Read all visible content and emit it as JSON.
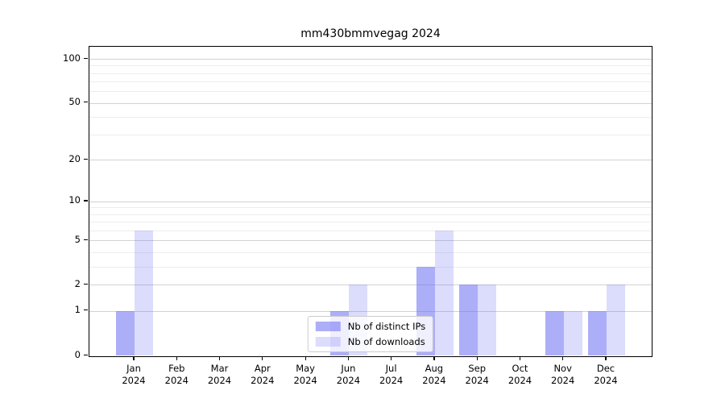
{
  "title": "mm430bmmvegag 2024",
  "chart_data": {
    "type": "bar",
    "title": "mm430bmmvegag 2024",
    "categories": [
      "Jan 2024",
      "Feb 2024",
      "Mar 2024",
      "Apr 2024",
      "May 2024",
      "Jun 2024",
      "Jul 2024",
      "Aug 2024",
      "Sep 2024",
      "Oct 2024",
      "Nov 2024",
      "Dec 2024"
    ],
    "series": [
      {
        "name": "Nb of distinct IPs",
        "color": "rgba(108,110,242,0.56)",
        "values": [
          1,
          0,
          0,
          0,
          0,
          1,
          0,
          3,
          2,
          0,
          1,
          1
        ]
      },
      {
        "name": "Nb of downloads",
        "color": "rgba(108,110,242,0.24)",
        "values": [
          6,
          0,
          0,
          0,
          0,
          2,
          0,
          6,
          2,
          0,
          1,
          2
        ]
      }
    ],
    "xlabel": "",
    "ylabel": "",
    "y_axis": {
      "scale": "log1p",
      "tick_values": [
        0,
        1,
        2,
        5,
        10,
        20,
        50,
        100
      ],
      "tick_labels": [
        "0",
        "1",
        "2",
        "5",
        "10",
        "20",
        "50",
        "100"
      ],
      "minor_gridlines": [
        3,
        4,
        6,
        7,
        8,
        9,
        30,
        40,
        60,
        70,
        80,
        90
      ],
      "max": 121
    },
    "grid": true,
    "legend": {
      "position": "lower center",
      "entries": [
        "Nb of distinct IPs",
        "Nb of downloads"
      ]
    }
  }
}
